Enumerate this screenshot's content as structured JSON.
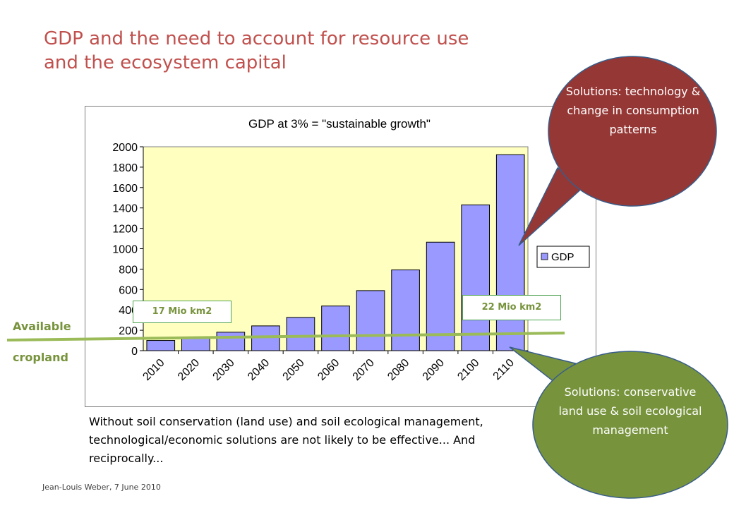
{
  "slide": {
    "title_line1": "GDP and the need to account for resource use",
    "title_line2": "and the ecosystem capital",
    "left_label_1": "Available",
    "left_label_2": "cropland",
    "body_text": "Without soil conservation (land use) and soil ecological management, technological/economic solutions are not likely to be effective... And reciprocally...",
    "footer": "Jean-Louis Weber, 7 June 2010"
  },
  "callouts": {
    "top": "Solutions: technology & change in consumption patterns",
    "bottom": "Solutions: conservative land use & soil ecological management"
  },
  "area_labels": {
    "left": "17 Mio km2",
    "right": "22 Mio km2"
  },
  "colors": {
    "title": "#c0504d",
    "bar_fill": "#9999ff",
    "plot_bg": "#ffffc0",
    "cropland_line": "#9bbb59",
    "callout_red": "#953735",
    "callout_green": "#77933c",
    "label_green": "#77933c"
  },
  "chart_data": {
    "type": "bar",
    "title": "GDP at 3% = \"sustainable growth\"",
    "categories": [
      "2010",
      "2020",
      "2030",
      "2040",
      "2050",
      "2060",
      "2070",
      "2080",
      "2090",
      "2100",
      "2110"
    ],
    "series": [
      {
        "name": "GDP",
        "values": [
          100,
          134,
          181,
          243,
          326,
          438,
          589,
          792,
          1064,
          1430,
          1922
        ]
      }
    ],
    "yticks": [
      0,
      200,
      400,
      600,
      800,
      1000,
      1200,
      1400,
      1600,
      1800,
      2000
    ],
    "ylim": [
      0,
      2000
    ],
    "legend": "right",
    "grid": false
  }
}
